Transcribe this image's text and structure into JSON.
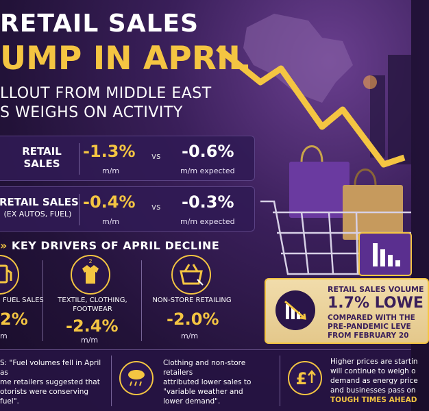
{
  "header": {
    "title_line1": "RETAIL SALES",
    "title_line2": "UMP IN APRIL",
    "subtitle_line1": "LLOUT FROM MIDDLE EAST",
    "subtitle_line2": "S WEIGHS ON ACTIVITY"
  },
  "rows": [
    {
      "label_line1": "RETAIL",
      "label_line2": "SALES",
      "actual": "-1.3%",
      "actual_unit": "m/m",
      "vs": "vs",
      "expected": "-0.6%",
      "expected_unit": "m/m expected"
    },
    {
      "label_line1": "RETAIL SALES",
      "label_line2": "(EX AUTOS, FUEL)",
      "actual": "-0.4%",
      "actual_unit": "m/m",
      "vs": "vs",
      "expected": "-0.3%",
      "expected_unit": "m/m expected"
    }
  ],
  "drivers": {
    "heading": "KEY DRIVERS OF APRIL DECLINE",
    "items": [
      {
        "icon": "fuel-pump-icon",
        "label_line1": "FUEL SALES",
        "label_line2": "",
        "value": "2%",
        "unit": "m"
      },
      {
        "icon": "shirt-icon",
        "label_line1": "TEXTILE, CLOTHING,",
        "label_line2": "FOOTWEAR",
        "value": "-2.4%",
        "unit": "m/m"
      },
      {
        "icon": "shopping-basket-icon",
        "label_line1": "NON-STORE RETAILING",
        "label_line2": "",
        "value": "-2.0%",
        "unit": "m/m"
      }
    ]
  },
  "highlight": {
    "title": "RETAIL SALES VOLUME",
    "value": "1.7% LOWE",
    "line1": "COMPARED WITH THE",
    "line2": "PRE-PANDEMIC LEVE",
    "line3": "FROM FEBRUARY 20"
  },
  "bottom": {
    "col1": [
      "S: \"Fuel volumes fell in April as",
      "me retailers suggested that",
      "otorists were conserving fuel\"."
    ],
    "col2": [
      "Clothing and non-store retailers",
      "attributed lower sales to",
      "\"variable weather and",
      "lower demand\"."
    ],
    "col3": [
      "Higher prices are startin",
      "will continue to weigh o",
      "demand as energy price",
      "and businesses pass on"
    ],
    "col3_emph": "TOUGH TIMES AHEAD"
  },
  "colors": {
    "accent": "#f4c542",
    "background": "#2a1549"
  }
}
